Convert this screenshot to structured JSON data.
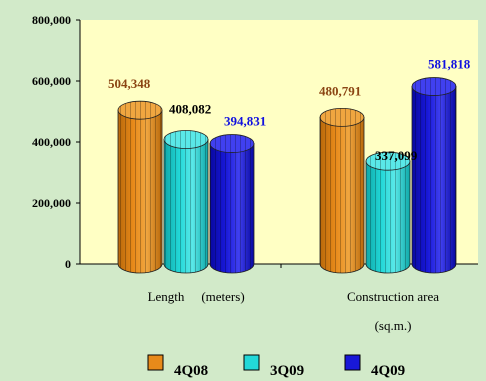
{
  "chart_data": {
    "type": "bar",
    "categories": [
      [
        "Length",
        "(meters)"
      ],
      [
        "Construction area",
        "(sq.m.)"
      ]
    ],
    "series": [
      {
        "name": "4Q08",
        "values": [
          504348,
          480791
        ],
        "color": "#e88a1a",
        "top_color": "#f0a640",
        "dark_color": "#b8680a"
      },
      {
        "name": "3Q09",
        "values": [
          408082,
          337099
        ],
        "color": "#22d8d8",
        "top_color": "#5ae8e8",
        "dark_color": "#0ea8a8"
      },
      {
        "name": "4Q09",
        "values": [
          394831,
          581818
        ],
        "color": "#1818d8",
        "top_color": "#4040f0",
        "dark_color": "#0808a0"
      }
    ],
    "data_labels": [
      [
        "504,348",
        "480,791"
      ],
      [
        "408,082",
        "337,099"
      ],
      [
        "394,831",
        "581,818"
      ]
    ],
    "data_label_colors": [
      "#8b4513",
      "#000000",
      "#1010e0"
    ],
    "y_ticks": [
      0,
      200000,
      400000,
      600000,
      800000
    ],
    "y_tick_labels": [
      "0",
      "200,000",
      "400,000",
      "600,000",
      "800,000"
    ],
    "ylim": [
      0,
      800000
    ],
    "grid": false,
    "legend_position": "bottom",
    "plot_background": "#ffffc4",
    "page_background": "#d2eac9"
  }
}
